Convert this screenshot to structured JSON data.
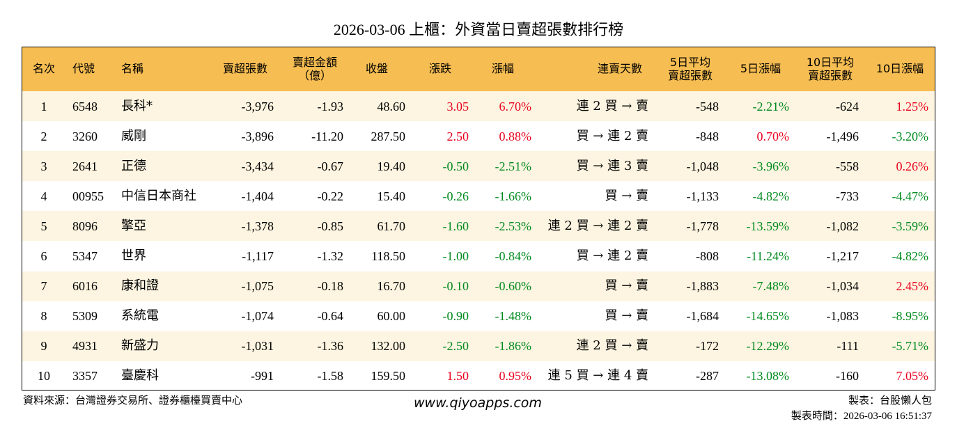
{
  "title": "2026-03-06 上櫃：外資當日賣超張數排行榜",
  "table": {
    "header": [
      [
        "名次"
      ],
      [
        "代號"
      ],
      [
        "名稱"
      ],
      [
        "賣超張數"
      ],
      [
        "賣超金額",
        "（億）"
      ],
      [
        "收盤"
      ],
      [
        "漲跌"
      ],
      [
        "漲幅"
      ],
      [
        "連賣天數"
      ],
      [
        "5日平均",
        "賣超張數"
      ],
      [
        "5日漲幅"
      ],
      [
        "10日平均",
        "賣超張數"
      ],
      [
        "10日漲幅"
      ]
    ],
    "rows": [
      [
        "1",
        "6548",
        "長科*",
        "-3,976",
        "-1.93",
        "48.60",
        "3.05",
        "6.70%",
        "連 2 買 → 賣",
        "-548",
        "-2.21%",
        "-624",
        "1.25%"
      ],
      [
        "2",
        "3260",
        "威剛",
        "-3,896",
        "-11.20",
        "287.50",
        "2.50",
        "0.88%",
        "買 → 連 2 賣",
        "-848",
        "0.70%",
        "-1,496",
        "-3.20%"
      ],
      [
        "3",
        "2641",
        "正德",
        "-3,434",
        "-0.67",
        "19.40",
        "-0.50",
        "-2.51%",
        "買 → 連 3 賣",
        "-1,048",
        "-3.96%",
        "-558",
        "0.26%"
      ],
      [
        "4",
        "00955",
        "中信日本商社",
        "-1,404",
        "-0.22",
        "15.40",
        "-0.26",
        "-1.66%",
        "買 → 賣",
        "-1,133",
        "-4.82%",
        "-733",
        "-4.47%"
      ],
      [
        "5",
        "8096",
        "擎亞",
        "-1,378",
        "-0.85",
        "61.70",
        "-1.60",
        "-2.53%",
        "連 2 買 → 連 2 賣",
        "-1,778",
        "-13.59%",
        "-1,082",
        "-3.59%"
      ],
      [
        "6",
        "5347",
        "世界",
        "-1,117",
        "-1.32",
        "118.50",
        "-1.00",
        "-0.84%",
        "買 → 連 2 賣",
        "-808",
        "-11.24%",
        "-1,217",
        "-4.82%"
      ],
      [
        "7",
        "6016",
        "康和證",
        "-1,075",
        "-0.18",
        "16.70",
        "-0.10",
        "-0.60%",
        "買 → 賣",
        "-1,883",
        "-7.48%",
        "-1,034",
        "2.45%"
      ],
      [
        "8",
        "5309",
        "系統電",
        "-1,074",
        "-0.64",
        "60.00",
        "-0.90",
        "-1.48%",
        "買 → 賣",
        "-1,684",
        "-14.65%",
        "-1,083",
        "-8.95%"
      ],
      [
        "9",
        "4931",
        "新盛力",
        "-1,031",
        "-1.36",
        "132.00",
        "-2.50",
        "-1.86%",
        "連 2 買 → 賣",
        "-172",
        "-12.29%",
        "-111",
        "-5.71%"
      ],
      [
        "10",
        "3357",
        "臺慶科",
        "-991",
        "-1.58",
        "159.50",
        "1.50",
        "0.95%",
        "連 5 買 → 連 4 賣",
        "-287",
        "-13.08%",
        "-160",
        "7.05%"
      ]
    ],
    "header_color": "#f6bd52",
    "stripe_color": "#fdf5e1",
    "up_color": "#e8001c",
    "down_color": "#008a1e"
  },
  "footer": {
    "source": "資料來源：台灣證券交易所、證券櫃檯買賣中心",
    "site": "www.qiyoapps.com",
    "maker": "製表：台股懶人包",
    "time": "製表時間：2026-03-06 16:51:37"
  }
}
